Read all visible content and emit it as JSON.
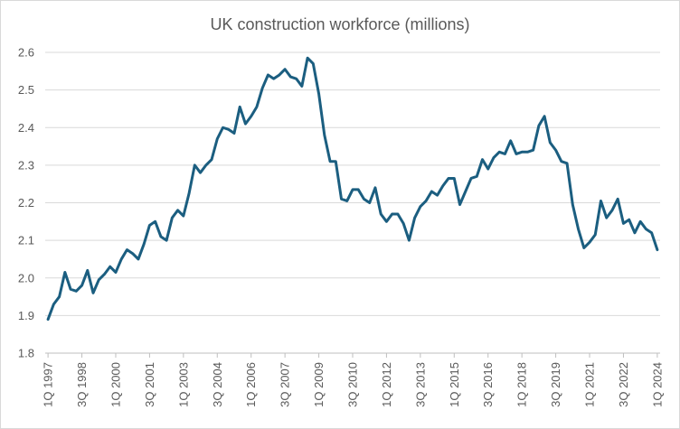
{
  "chart_data": {
    "type": "line",
    "title": "UK construction workforce (millions)",
    "xlabel": "",
    "ylabel": "",
    "ylim": [
      1.8,
      2.6
    ],
    "yticks": [
      "1.8",
      "1.9",
      "2.0",
      "2.1",
      "2.2",
      "2.3",
      "2.4",
      "2.5",
      "2.6"
    ],
    "grid": true,
    "legend": "none",
    "line_color": "#1b5e80",
    "x_tick_labels": [
      {
        "i": 0,
        "label": "1Q 1997"
      },
      {
        "i": 6,
        "label": "3Q 1998"
      },
      {
        "i": 12,
        "label": "1Q 2000"
      },
      {
        "i": 18,
        "label": "3Q 2001"
      },
      {
        "i": 24,
        "label": "1Q 2003"
      },
      {
        "i": 30,
        "label": "3Q 2004"
      },
      {
        "i": 36,
        "label": "1Q 2006"
      },
      {
        "i": 42,
        "label": "3Q 2007"
      },
      {
        "i": 48,
        "label": "1Q 2009"
      },
      {
        "i": 54,
        "label": "3Q 2010"
      },
      {
        "i": 60,
        "label": "1Q 2012"
      },
      {
        "i": 66,
        "label": "3Q 2013"
      },
      {
        "i": 72,
        "label": "1Q 2015"
      },
      {
        "i": 78,
        "label": "3Q 2016"
      },
      {
        "i": 84,
        "label": "1Q 2018"
      },
      {
        "i": 90,
        "label": "3Q 2019"
      },
      {
        "i": 96,
        "label": "1Q 2021"
      },
      {
        "i": 102,
        "label": "3Q 2022"
      },
      {
        "i": 108,
        "label": "1Q 2024"
      }
    ],
    "series": [
      {
        "values": [
          1.89,
          1.93,
          1.95,
          2.015,
          1.97,
          1.965,
          1.98,
          2.02,
          1.96,
          1.995,
          2.01,
          2.03,
          2.015,
          2.05,
          2.075,
          2.065,
          2.05,
          2.09,
          2.14,
          2.15,
          2.11,
          2.1,
          2.16,
          2.18,
          2.165,
          2.225,
          2.3,
          2.28,
          2.3,
          2.315,
          2.37,
          2.4,
          2.395,
          2.385,
          2.455,
          2.41,
          2.43,
          2.455,
          2.505,
          2.54,
          2.53,
          2.54,
          2.555,
          2.535,
          2.53,
          2.51,
          2.585,
          2.57,
          2.49,
          2.38,
          2.31,
          2.31,
          2.21,
          2.205,
          2.235,
          2.235,
          2.21,
          2.2,
          2.24,
          2.17,
          2.15,
          2.17,
          2.17,
          2.145,
          2.1,
          2.16,
          2.19,
          2.205,
          2.23,
          2.22,
          2.245,
          2.265,
          2.265,
          2.195,
          2.23,
          2.265,
          2.27,
          2.315,
          2.29,
          2.32,
          2.335,
          2.33,
          2.365,
          2.33,
          2.335,
          2.335,
          2.34,
          2.405,
          2.43,
          2.36,
          2.34,
          2.31,
          2.305,
          2.195,
          2.13,
          2.08,
          2.095,
          2.115,
          2.205,
          2.16,
          2.18,
          2.21,
          2.145,
          2.155,
          2.12,
          2.15,
          2.13,
          2.12,
          2.075
        ]
      }
    ]
  }
}
